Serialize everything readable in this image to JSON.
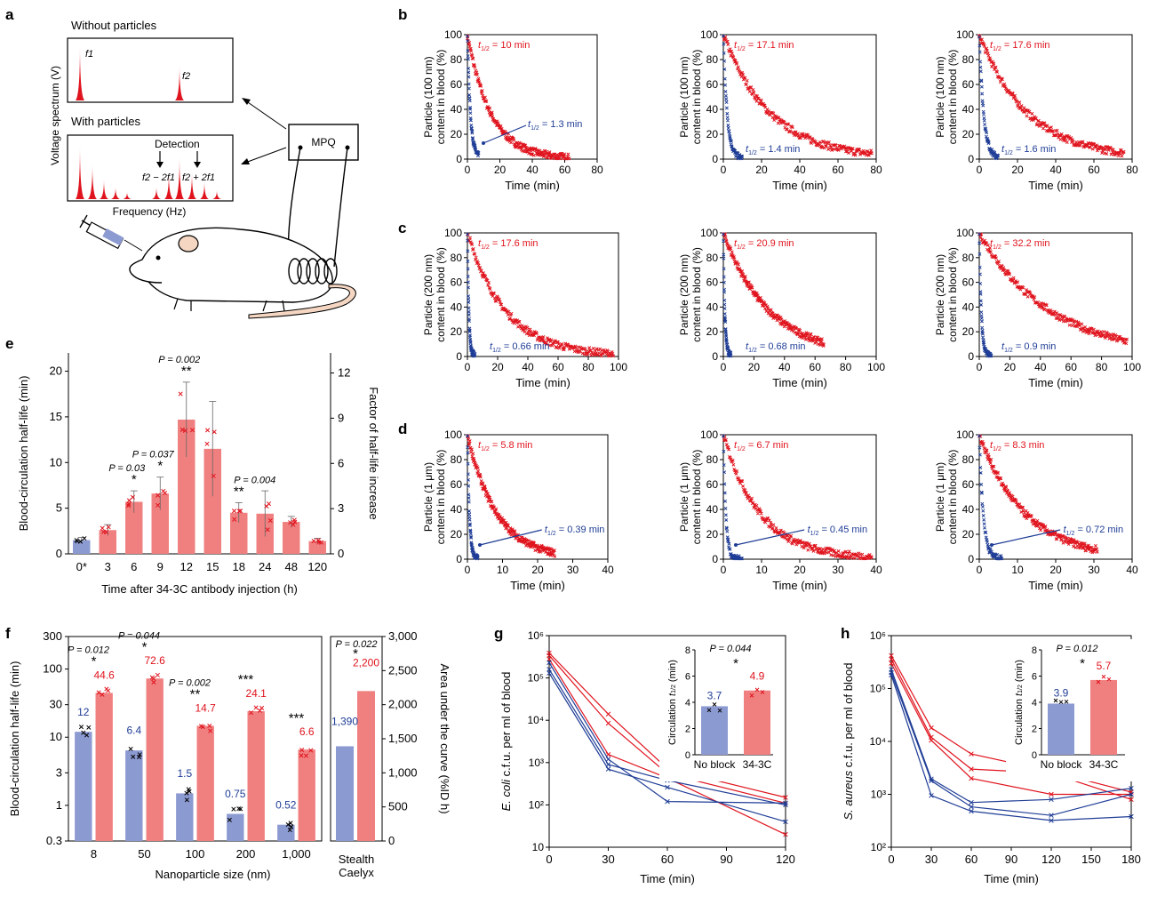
{
  "colors": {
    "red": "#e0141e",
    "blue": "#1f3d96",
    "red_bar": "#f08080",
    "blue_bar": "#8c9ad2",
    "axis": "#000000"
  },
  "panel_letters": {
    "a": "a",
    "b": "b",
    "c": "c",
    "d": "d",
    "e": "e",
    "f": "f",
    "g": "g",
    "h": "h"
  },
  "panel_a": {
    "title_top": "Without particles",
    "title_bottom": "With particles",
    "ylabel": "Voltage spectrum (V)",
    "xlabel": "Frequency (Hz)",
    "f1": "f1",
    "f2": "f2",
    "detection": "Detection",
    "minus_label": "f2 − 2f1",
    "plus_label": "f2 + 2f1",
    "mpq": "MPQ"
  },
  "chart_data": [
    {
      "id": "b1",
      "type": "scatter",
      "ylabel": "Particle (100 nm) content in blood (%)",
      "xlabel": "Time (min)",
      "xlim": [
        0,
        80
      ],
      "ylim": [
        0,
        100
      ],
      "xticks": [
        0,
        20,
        40,
        60,
        80
      ],
      "yticks": [
        0,
        20,
        40,
        60,
        80,
        100
      ],
      "red_label": "t1/2 = 10 min",
      "blue_label": "t1/2 = 1.3 min",
      "red_halflife": 10,
      "blue_halflife": 1.3,
      "red_end": 63,
      "blue_end": 7
    },
    {
      "id": "b2",
      "type": "scatter",
      "ylabel": "Particle (100 nm) content in blood (%)",
      "xlabel": "Time (min)",
      "xlim": [
        0,
        80
      ],
      "ylim": [
        0,
        100
      ],
      "xticks": [
        0,
        20,
        40,
        60,
        80
      ],
      "yticks": [
        0,
        20,
        40,
        60,
        80,
        100
      ],
      "red_label": "t1/2 = 17.1 min",
      "blue_label": "t1/2 = 1.4 min",
      "red_halflife": 17.1,
      "blue_halflife": 1.4,
      "red_end": 78,
      "blue_end": 10
    },
    {
      "id": "b3",
      "type": "scatter",
      "ylabel": "Particle (100 nm) content in blood (%)",
      "xlabel": "Time (min)",
      "xlim": [
        0,
        80
      ],
      "ylim": [
        0,
        100
      ],
      "xticks": [
        0,
        20,
        40,
        60,
        80
      ],
      "yticks": [
        0,
        20,
        40,
        60,
        80,
        100
      ],
      "red_label": "t1/2 = 17.6 min",
      "blue_label": "t1/2 = 1.6 min",
      "red_halflife": 17.6,
      "blue_halflife": 1.6,
      "red_end": 76,
      "blue_end": 10
    },
    {
      "id": "c1",
      "type": "scatter",
      "ylabel": "Particle (200 nm) content in blood (%)",
      "xlabel": "Time (min)",
      "xlim": [
        0,
        100
      ],
      "ylim": [
        0,
        100
      ],
      "xticks": [
        0,
        20,
        40,
        60,
        80,
        100
      ],
      "yticks": [
        0,
        20,
        40,
        60,
        80,
        100
      ],
      "red_label": "t1/2 = 17.6 min",
      "blue_label": "t1/2 = 0.66 min",
      "red_halflife": 17.6,
      "blue_halflife": 0.66,
      "red_end": 97,
      "blue_end": 5
    },
    {
      "id": "c2",
      "type": "scatter",
      "ylabel": "Particle (200 nm) content in blood (%)",
      "xlabel": "Time (min)",
      "xlim": [
        0,
        100
      ],
      "ylim": [
        0,
        100
      ],
      "xticks": [
        0,
        20,
        40,
        60,
        80,
        100
      ],
      "yticks": [
        0,
        20,
        40,
        60,
        80,
        100
      ],
      "red_label": "t1/2 = 20.9 min",
      "blue_label": "t1/2 = 0.68 min",
      "red_halflife": 20.9,
      "blue_halflife": 0.68,
      "red_end": 66,
      "blue_end": 5
    },
    {
      "id": "c3",
      "type": "scatter",
      "ylabel": "Particle (200 nm) content in blood (%)",
      "xlabel": "Time (min)",
      "xlim": [
        0,
        100
      ],
      "ylim": [
        0,
        100
      ],
      "xticks": [
        0,
        20,
        40,
        60,
        80,
        100
      ],
      "yticks": [
        0,
        20,
        40,
        60,
        80,
        100
      ],
      "red_label": "t1/2 = 32.2 min",
      "blue_label": "t1/2 = 0.9 min",
      "red_halflife": 32.2,
      "blue_halflife": 0.9,
      "red_end": 97,
      "blue_end": 8
    },
    {
      "id": "d1",
      "type": "scatter",
      "ylabel": "Particle (1 μm) content in blood (%)",
      "xlabel": "Time (min)",
      "xlim": [
        0,
        40
      ],
      "ylim": [
        0,
        100
      ],
      "xticks": [
        0,
        10,
        20,
        30,
        40
      ],
      "yticks": [
        0,
        20,
        40,
        60,
        80,
        100
      ],
      "red_label": "t1/2 = 5.8 min",
      "blue_label": "t1/2 = 0.39 min",
      "red_halflife": 5.8,
      "blue_halflife": 0.39,
      "red_end": 25,
      "blue_end": 3
    },
    {
      "id": "d2",
      "type": "scatter",
      "ylabel": "Particle (1 μm) content in blood (%)",
      "xlabel": "Time (min)",
      "xlim": [
        0,
        40
      ],
      "ylim": [
        0,
        100
      ],
      "xticks": [
        0,
        10,
        20,
        30,
        40
      ],
      "yticks": [
        0,
        20,
        40,
        60,
        80,
        100
      ],
      "red_label": "t1/2 = 6.7 min",
      "blue_label": "t1/2 = 0.45 min",
      "red_halflife": 6.7,
      "blue_halflife": 0.45,
      "red_end": 39,
      "blue_end": 5
    },
    {
      "id": "d3",
      "type": "scatter",
      "ylabel": "Particle (1 μm) content in blood (%)",
      "xlabel": "Time (min)",
      "xlim": [
        0,
        40
      ],
      "ylim": [
        0,
        100
      ],
      "xticks": [
        0,
        10,
        20,
        30,
        40
      ],
      "yticks": [
        0,
        20,
        40,
        60,
        80,
        100
      ],
      "red_label": "t1/2 = 8.3 min",
      "blue_label": "t1/2 = 0.72 min",
      "red_halflife": 8.3,
      "blue_halflife": 0.72,
      "red_end": 31,
      "blue_end": 6
    },
    {
      "id": "e",
      "type": "bar",
      "xlabel": "Time after 34-3C antibody injection (h)",
      "ylabel": "Blood-circulation half-life (min)",
      "y2label": "Factor of half-life increase",
      "categories": [
        "0*",
        "3",
        "6",
        "9",
        "12",
        "15",
        "18",
        "24",
        "48",
        "120"
      ],
      "values": [
        1.5,
        2.6,
        5.7,
        6.6,
        14.7,
        11.5,
        4.5,
        4.4,
        3.5,
        1.4
      ],
      "errors": [
        0.3,
        0.6,
        1.2,
        1.8,
        4.1,
        5.2,
        1.1,
        2.5,
        0.6,
        0.3
      ],
      "ylim": [
        0,
        22
      ],
      "yticks": [
        0,
        5,
        10,
        15,
        20
      ],
      "y2ticks": [
        0,
        3,
        6,
        9,
        12
      ],
      "annotations": [
        {
          "cat": "6",
          "p": "P = 0.03",
          "stars": "*"
        },
        {
          "cat": "9",
          "p": "P = 0.037",
          "stars": "*"
        },
        {
          "cat": "12",
          "p": "P = 0.002",
          "stars": "**"
        },
        {
          "cat": "18",
          "p": "P = 0.004",
          "stars": "**"
        }
      ]
    },
    {
      "id": "f",
      "type": "bar",
      "xlabel": "Nanoparticle size (nm)",
      "ylabel": "Blood-circulation half-life (min)",
      "y2label": "Area under the curve (%ID h)",
      "categories": [
        "8",
        "50",
        "100",
        "200",
        "1,000"
      ],
      "series": [
        {
          "name": "no block",
          "values": [
            12,
            6.4,
            1.5,
            0.75,
            0.52
          ],
          "labels": [
            "12",
            "6.4",
            "1.5",
            "0.75",
            "0.52"
          ]
        },
        {
          "name": "34-3C",
          "values": [
            44.6,
            72.6,
            14.7,
            24.1,
            6.6
          ],
          "labels": [
            "44.6",
            "72.6",
            "14.7",
            "24.1",
            "6.6"
          ]
        }
      ],
      "yticks": [
        "0.3",
        "1",
        "3",
        "10",
        "30",
        "100",
        "300"
      ],
      "ytick_values": [
        0.3,
        1,
        3,
        10,
        30,
        100,
        300
      ],
      "y2ticks": [
        "0",
        "500",
        "1,000",
        "1,500",
        "2,000",
        "2,500",
        "3,000"
      ],
      "annotations": [
        {
          "cat": "8",
          "p": "P = 0.012",
          "stars": "*"
        },
        {
          "cat": "50",
          "p": "P = 0.044",
          "stars": "*"
        },
        {
          "cat": "100",
          "p": "P = 0.002",
          "stars": "**"
        },
        {
          "cat": "200",
          "p": "",
          "stars": "***"
        },
        {
          "cat": "1,000",
          "p": "",
          "stars": "***"
        }
      ],
      "stealth": {
        "label1": "Stealth",
        "label2": "Caelyx",
        "values": [
          1390,
          2200
        ],
        "labels": [
          "1,390",
          "2,200"
        ],
        "p": "P = 0.022",
        "stars": "*"
      }
    },
    {
      "id": "g",
      "type": "line",
      "xlabel": "Time (min)",
      "ylabel": "E. coli c.f.u. per ml of blood",
      "x": [
        0,
        30,
        60,
        120
      ],
      "xticks": [
        0,
        30,
        60,
        90,
        120
      ],
      "yticks": [
        "10",
        "10²",
        "10³",
        "10⁴",
        "10⁵",
        "10⁶"
      ],
      "red": [
        [
          390000,
          14000,
          720,
          150
        ],
        [
          340000,
          8500,
          550,
          110
        ],
        [
          280000,
          1550,
          430,
          20
        ]
      ],
      "blue": [
        [
          230000,
          1200,
          120,
          110
        ],
        [
          160000,
          900,
          380,
          100
        ],
        [
          130000,
          700,
          260,
          40
        ]
      ],
      "inset": {
        "ylabel": "Circulation t1/2 (min)",
        "categories": [
          "No block",
          "34-3C"
        ],
        "values": [
          3.7,
          4.9
        ],
        "labels": [
          "3.7",
          "4.9"
        ],
        "p": "P = 0.044",
        "stars": "*",
        "yticks": [
          0,
          2,
          4,
          6,
          8
        ]
      }
    },
    {
      "id": "h",
      "type": "line",
      "xlabel": "Time (min)",
      "ylabel": "S. aureus c.f.u. per ml of blood",
      "x": [
        0,
        30,
        60,
        120,
        180
      ],
      "xticks": [
        0,
        30,
        60,
        90,
        120,
        150,
        180
      ],
      "yticks": [
        "10²",
        "10³",
        "10⁴",
        "10⁵",
        "10⁶"
      ],
      "red": [
        [
          420000,
          18000,
          5800,
          2700,
          1100
        ],
        [
          360000,
          12000,
          3000,
          2500,
          800
        ],
        [
          300000,
          10500,
          2000,
          1000,
          1000
        ]
      ],
      "blue": [
        [
          230000,
          1950,
          700,
          800,
          1300
        ],
        [
          200000,
          1800,
          580,
          400,
          1000
        ],
        [
          180000,
          950,
          480,
          320,
          380
        ]
      ],
      "inset": {
        "ylabel": "Circulation t1/2 (min)",
        "categories": [
          "No block",
          "34-3C"
        ],
        "values": [
          3.9,
          5.7
        ],
        "labels": [
          "3.9",
          "5.7"
        ],
        "p": "P = 0.012",
        "stars": "*",
        "yticks": [
          0,
          2,
          4,
          6,
          8
        ]
      }
    }
  ]
}
